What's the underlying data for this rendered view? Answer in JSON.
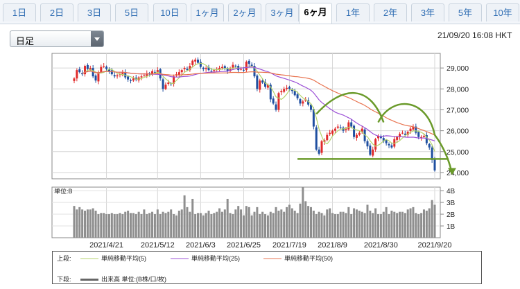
{
  "tabs": [
    "1日",
    "2日",
    "3日",
    "5日",
    "10日",
    "1ヶ月",
    "2ヶ月",
    "3ヶ月",
    "6ヶ月",
    "1年",
    "2年",
    "3年",
    "5年",
    "10年"
  ],
  "active_tab": "6ヶ月",
  "period_select": {
    "value": "日足"
  },
  "timestamp": "21/09/20 16:08 HKT",
  "legend": {
    "upper_label": "上段:",
    "lower_label": "下段:",
    "ma5": "単純移動平均(5)",
    "ma25": "単純移動平均(25)",
    "ma50": "単純移動平均(50)",
    "volume": "出来高 単位:(B株/口/枚)"
  },
  "colors": {
    "ma5": "#b4d36a",
    "ma25": "#9b4fd6",
    "ma50": "#e8734f",
    "up": "#e02a2a",
    "down": "#1f4fa0",
    "volume_bar": "#8e8e8e",
    "annotation": "#6a9a2a"
  },
  "chart_data": [
    {
      "type": "candlestick",
      "x_ticks": [
        "2021/4/21",
        "2021/5/12",
        "2021/6/3",
        "2021/6/25",
        "2021/7/19",
        "2021/8/9",
        "2021/8/30",
        "2021/9/20"
      ],
      "y_ticks": [
        "29,000",
        "28,000",
        "27,000",
        "26,000",
        "25,000",
        "24,000"
      ],
      "ylim": [
        23700,
        29700
      ],
      "grid": true,
      "close_series": [
        28500,
        28900,
        28800,
        28700,
        29100,
        28950,
        29000,
        28600,
        28400,
        28800,
        29050,
        29100,
        28950,
        28850,
        28700,
        28600,
        28650,
        28700,
        28800,
        28550,
        28450,
        28400,
        28500,
        28450,
        28550,
        28600,
        28650,
        28750,
        28700,
        28850,
        28800,
        28900,
        28500,
        28000,
        28200,
        28300,
        28250,
        28600,
        28700,
        28800,
        28900,
        29000,
        28900,
        29100,
        29350,
        29400,
        29250,
        29050,
        28950,
        29000,
        28900,
        28850,
        28900,
        28950,
        29000,
        29050,
        29000,
        28850,
        28950,
        29150,
        29100,
        28900,
        28950,
        28900,
        29300,
        29200,
        29100,
        28600,
        28000,
        28400,
        28300,
        28100,
        28200,
        27500,
        27300,
        27000,
        27800,
        27900,
        28000,
        28050,
        28000,
        27900,
        27700,
        27550,
        27300,
        27400,
        27500,
        27250,
        27000,
        26200,
        25100,
        24900,
        25500,
        25550,
        25800,
        25900,
        26000,
        26100,
        26200,
        26150,
        26000,
        26100,
        26400,
        26200,
        25700,
        25800,
        25900,
        26100,
        25500,
        25250,
        24850,
        25100,
        25600,
        25750,
        25650,
        25500,
        25400,
        25300,
        25200,
        25600,
        25700,
        25850,
        25900,
        25800,
        25950,
        26100,
        26200,
        25900,
        25700,
        25700,
        25750,
        25400,
        25200,
        24600,
        24100
      ],
      "series": [
        {
          "name": "単純移動平均(5)"
        },
        {
          "name": "単純移動平均(25)"
        },
        {
          "name": "単純移動平均(50)"
        }
      ]
    },
    {
      "type": "bar",
      "title": "単位:B",
      "y_ticks": [
        "4B",
        "3B",
        "2B",
        "1B"
      ],
      "ylim": [
        0,
        4.3
      ],
      "values": [
        2.7,
        2.4,
        2.6,
        2.4,
        2.3,
        2.4,
        2.4,
        2.5,
        2.3,
        2.0,
        2.1,
        2.1,
        2.0,
        2.0,
        2.1,
        2.0,
        2.0,
        2.1,
        2.0,
        2.2,
        2.3,
        2.1,
        2.1,
        2.0,
        2.2,
        2.0,
        2.4,
        2.0,
        2.1,
        2.2,
        2.0,
        2.4,
        2.0,
        2.2,
        2.1,
        2.2,
        2.4,
        2.0,
        1.9,
        2.3,
        2.4,
        3.6,
        2.6,
        2.2,
        3.3,
        2.0,
        2.1,
        2.1,
        1.9,
        2.1,
        2.3,
        2.0,
        2.1,
        2.2,
        2.5,
        2.2,
        2.4,
        3.3,
        2.1,
        2.0,
        2.4,
        2.7,
        2.4,
        1.9,
        2.7,
        2.6,
        1.9,
        2.2,
        2.6,
        2.0,
        2.2,
        2.0,
        1.9,
        2.2,
        2.1,
        2.6,
        2.3,
        2.4,
        2.2,
        2.6,
        2.8,
        2.5,
        2.3,
        2.1,
        2.9,
        4.3,
        3.1,
        2.7,
        2.6,
        2.3,
        2.0,
        2.2,
        2.1,
        1.9,
        2.4,
        2.5,
        2.1,
        2.0,
        2.0,
        2.2,
        2.2,
        2.1,
        2.6,
        2.0,
        2.5,
        2.4,
        2.3,
        2.2,
        2.1,
        2.8,
        2.3,
        2.1,
        2.5,
        2.0,
        2.0,
        2.2,
        2.6,
        2.0,
        2.3,
        2.2,
        2.1,
        2.2,
        2.2,
        2.1,
        2.4,
        2.5,
        2.6,
        2.1,
        2.0,
        2.1,
        2.4,
        2.3,
        2.5,
        3.2,
        2.8
      ]
    }
  ]
}
